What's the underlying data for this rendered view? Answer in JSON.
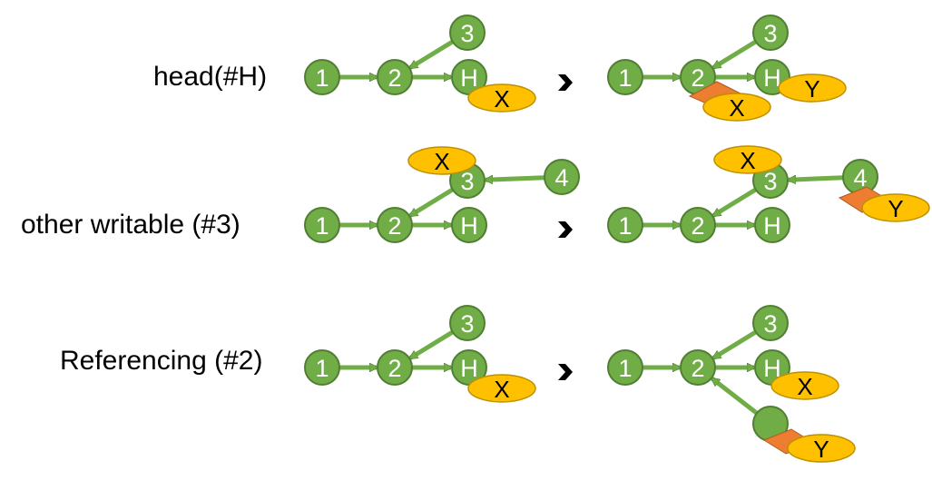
{
  "colors": {
    "node_fill": "#70ad47",
    "node_stroke": "#507e32",
    "edge": "#70ad47",
    "edge_stroke": "#507e32",
    "oval_fill": "#ffc000",
    "oval_stroke": "#bf9000",
    "marker_fill": "#ed7d31",
    "marker_stroke": "#ae5a21",
    "transition_arrow": "#000000"
  },
  "rows": [
    {
      "label": "head(#H)",
      "before": {
        "nodes": [
          "1",
          "2",
          "H",
          "3"
        ],
        "ovals": [
          "X"
        ]
      },
      "after": {
        "nodes": [
          "1",
          "2",
          "H",
          "3"
        ],
        "ovals": [
          "Y",
          "X"
        ]
      }
    },
    {
      "label": "other writable (#3)",
      "before": {
        "nodes": [
          "1",
          "2",
          "H",
          "3",
          "4"
        ],
        "ovals": [
          "X"
        ]
      },
      "after": {
        "nodes": [
          "1",
          "2",
          "H",
          "3",
          "4"
        ],
        "ovals": [
          "X",
          "Y"
        ]
      }
    },
    {
      "label": "Referencing (#2)",
      "before": {
        "nodes": [
          "1",
          "2",
          "H",
          "3"
        ],
        "ovals": [
          "X"
        ]
      },
      "after": {
        "nodes": [
          "1",
          "2",
          "H",
          "3",
          ""
        ],
        "ovals": [
          "X",
          "Y"
        ]
      }
    }
  ]
}
